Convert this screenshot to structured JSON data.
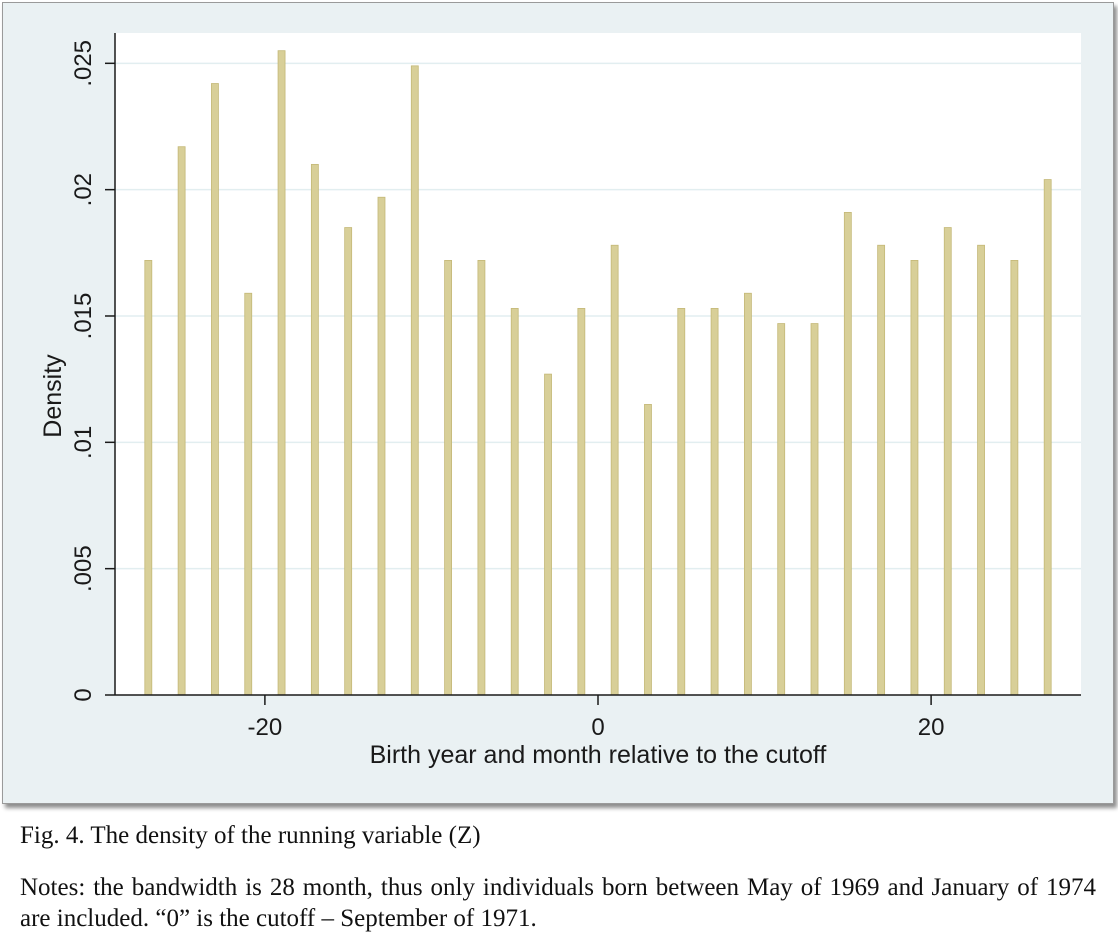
{
  "figure": {
    "caption": "Fig. 4. The density of the running variable (Z)",
    "notes": "Notes: the bandwidth is 28 month, thus only individuals born between May of 1969 and January of 1974 are included. “0” is the cutoff – September of 1971."
  },
  "colors": {
    "bar": "#d8cf98",
    "bar_edge": "#c4b877",
    "plot_background": "#ffffff",
    "frame_background": "#eaf1f3",
    "grid": "#e2eef0",
    "axis": "#1a1a1a"
  },
  "chart_data": {
    "type": "bar",
    "title": "",
    "xlabel": "Birth year and month relative to the cutoff",
    "ylabel": "Density",
    "x": [
      -27,
      -25,
      -23,
      -21,
      -19,
      -17,
      -15,
      -13,
      -11,
      -9,
      -7,
      -5,
      -3,
      -1,
      1,
      3,
      5,
      7,
      9,
      11,
      13,
      15,
      17,
      19,
      21,
      23,
      25,
      27
    ],
    "values": [
      0.0172,
      0.0217,
      0.0242,
      0.0159,
      0.0255,
      0.021,
      0.0185,
      0.0197,
      0.0249,
      0.0172,
      0.0172,
      0.0153,
      0.0127,
      0.0153,
      0.0178,
      0.0115,
      0.0153,
      0.0153,
      0.0159,
      0.0147,
      0.0147,
      0.0191,
      0.0178,
      0.0172,
      0.0185,
      0.0178,
      0.0172,
      0.0204
    ],
    "xlim": [
      -29,
      29
    ],
    "ylim": [
      0,
      0.0262
    ],
    "xticks": [
      -20,
      0,
      20
    ],
    "xtick_labels": [
      "-20",
      "0",
      "20"
    ],
    "yticks": [
      0,
      0.005,
      0.01,
      0.015,
      0.02,
      0.025
    ],
    "ytick_labels": [
      "0",
      ".005",
      ".01",
      ".015",
      ".02",
      ".025"
    ],
    "grid": true,
    "legend": "none"
  }
}
